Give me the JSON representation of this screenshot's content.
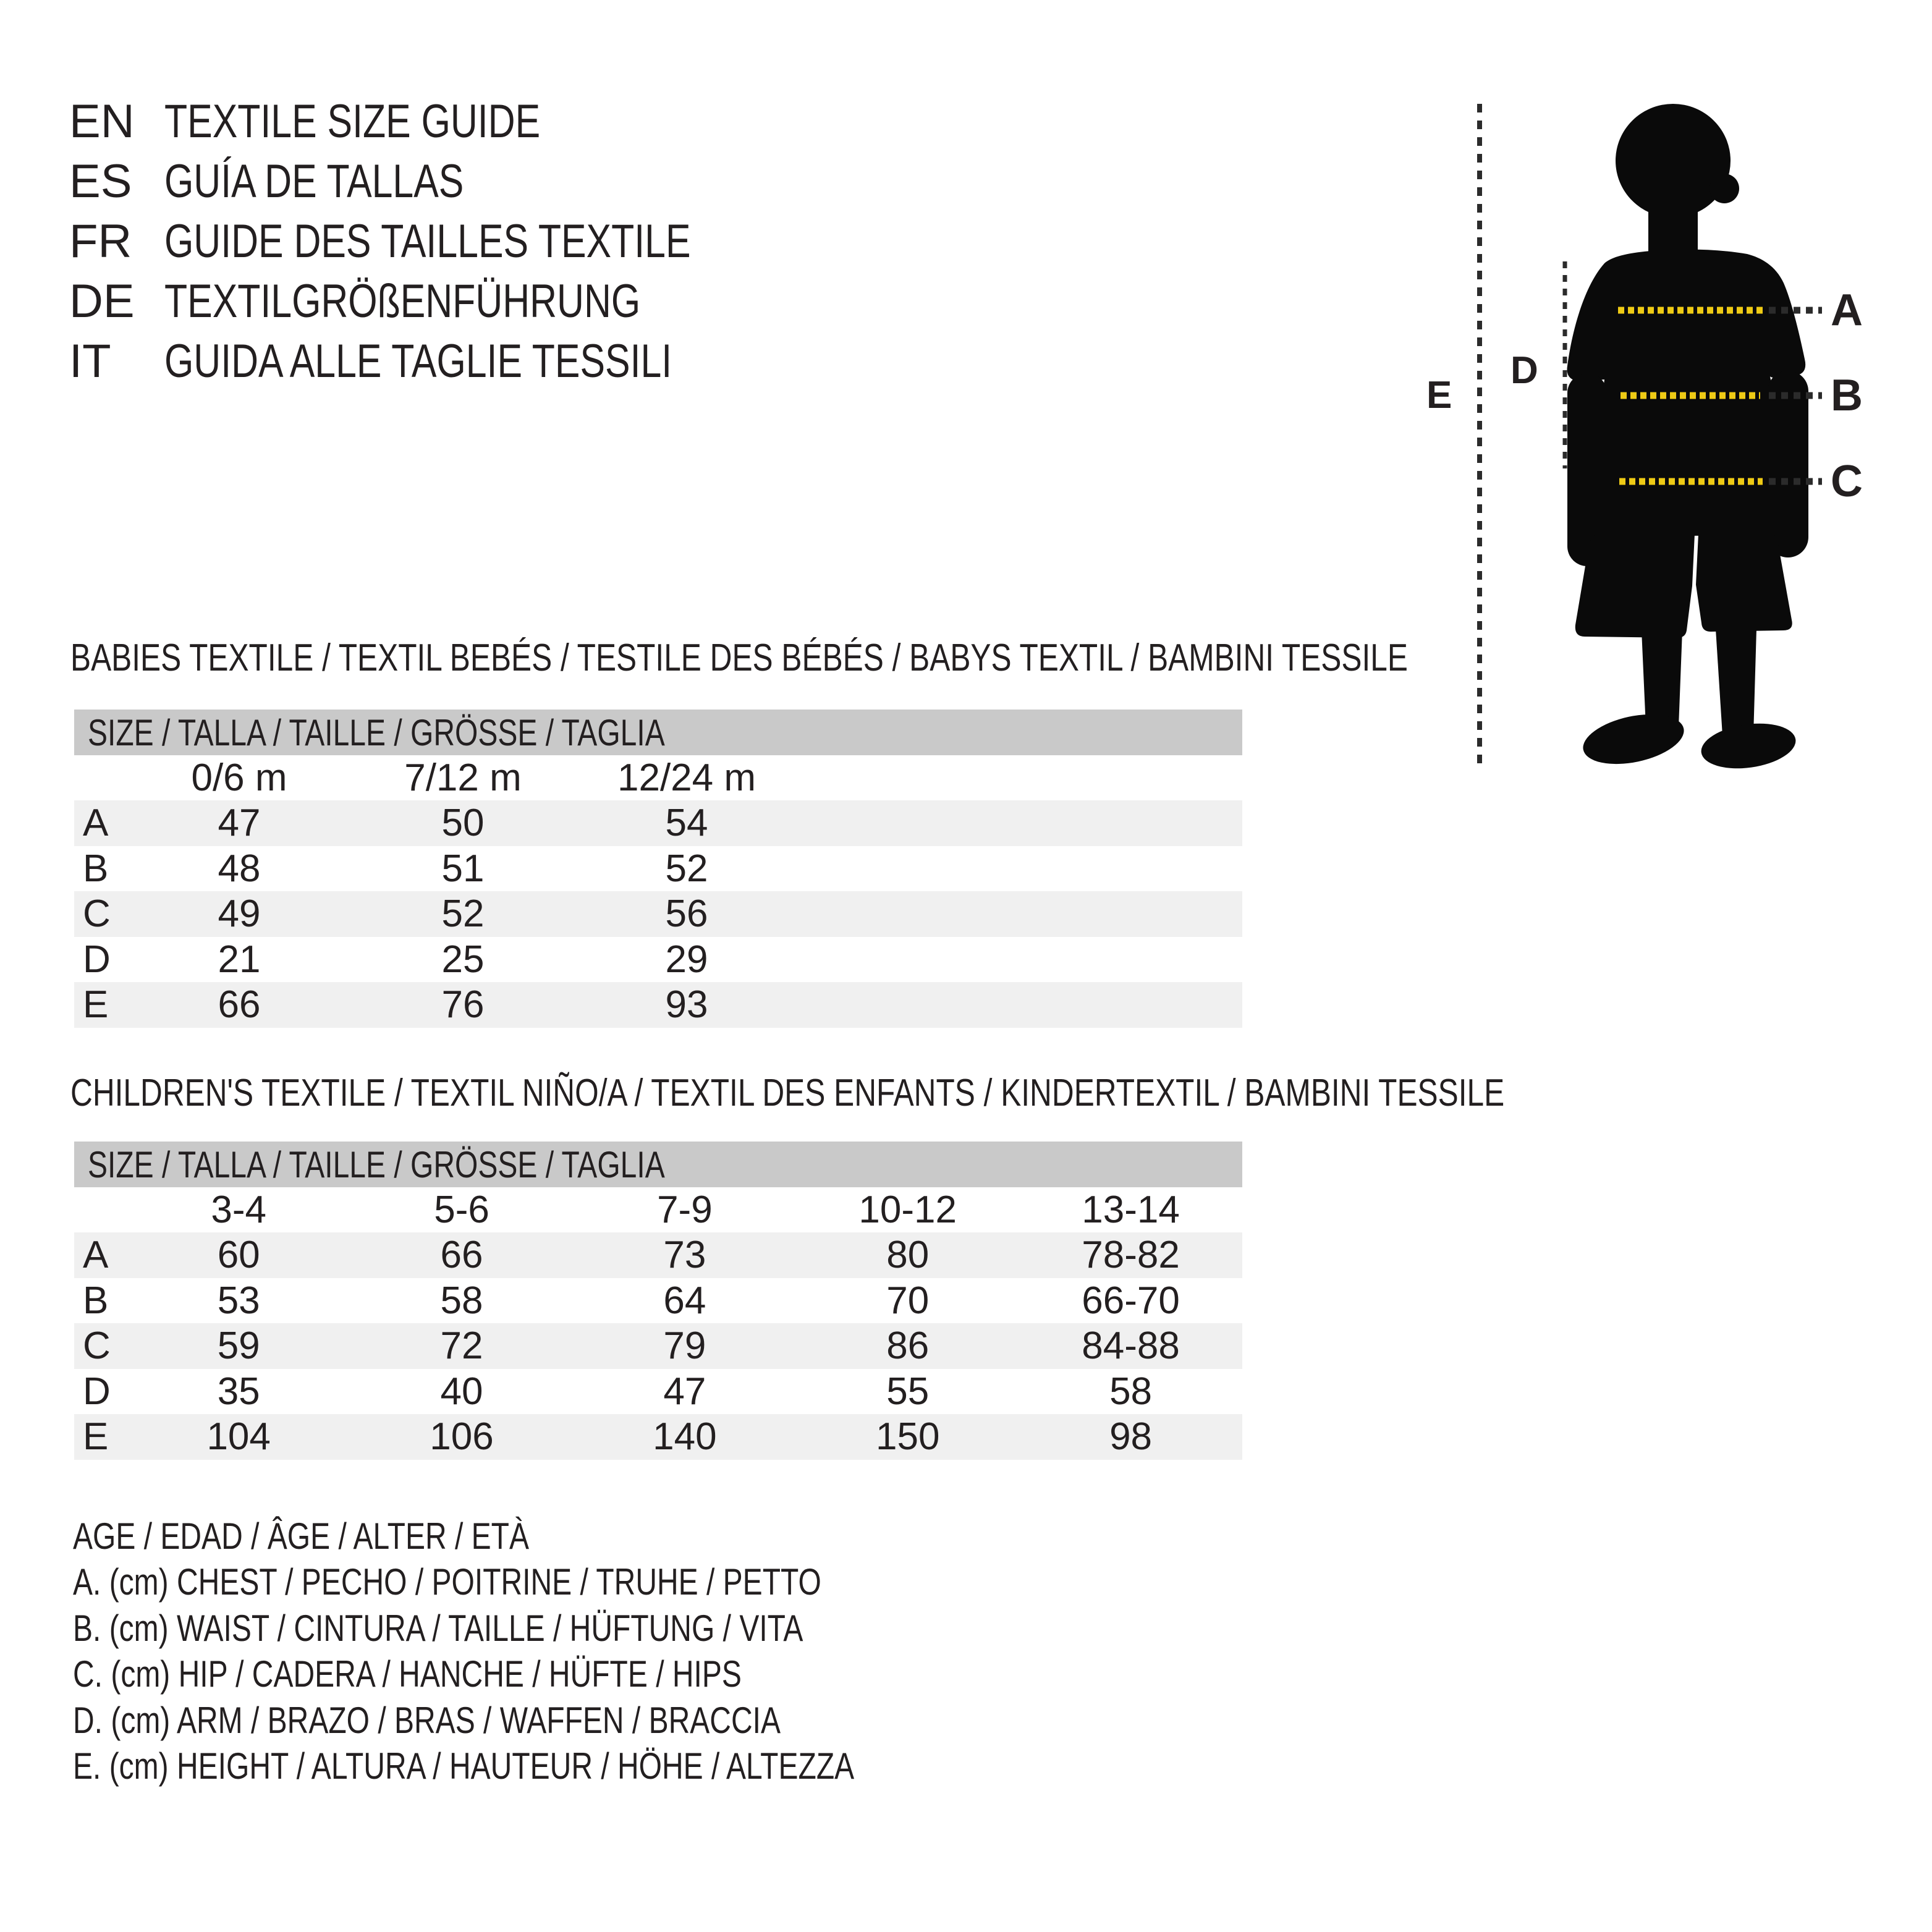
{
  "colors": {
    "ink": "#231F20",
    "bar_gray": "#C9C9C9",
    "stripe_gray": "#F0F0F0",
    "dash_dark": "#2B2B2B",
    "dash_yellow": "#EFCB15",
    "silhouette": "#0A0A0A"
  },
  "languages": [
    {
      "code": "EN",
      "label": "TEXTILE SIZE GUIDE"
    },
    {
      "code": "ES",
      "label": "GUÍA DE TALLAS"
    },
    {
      "code": "FR",
      "label": "GUIDE DES TAILLES TEXTILE"
    },
    {
      "code": "DE",
      "label": "TEXTILGRÖßENFÜHRUNG"
    },
    {
      "code": "IT",
      "label": "GUIDA ALLE TAGLIE TESSILI"
    }
  ],
  "figure": {
    "labels": {
      "a": "A",
      "b": "B",
      "c": "C",
      "d": "D",
      "e": "E"
    }
  },
  "babies": {
    "heading": "BABIES TEXTILE / TEXTIL BEBÉS / TESTILE DES BÉBÉS / BABYS TEXTIL / BAMBINI TESSILE",
    "size_header": "SIZE / TALLA / TAILLE / GRÖSSE / TAGLIA",
    "columns": [
      "0/6 m",
      "7/12 m",
      "12/24 m"
    ],
    "rows": [
      {
        "label": "A",
        "values": [
          "47",
          "50",
          "54"
        ]
      },
      {
        "label": "B",
        "values": [
          "48",
          "51",
          "52"
        ]
      },
      {
        "label": "C",
        "values": [
          "49",
          "52",
          "56"
        ]
      },
      {
        "label": "D",
        "values": [
          "21",
          "25",
          "29"
        ]
      },
      {
        "label": "E",
        "values": [
          "66",
          "76",
          "93"
        ]
      }
    ]
  },
  "children": {
    "heading": "CHILDREN'S TEXTILE / TEXTIL NIÑO/A / TEXTIL DES ENFANTS / KINDERTEXTIL / BAMBINI TESSILE",
    "size_header": "SIZE / TALLA / TAILLE / GRÖSSE / TAGLIA",
    "columns": [
      "3-4",
      "5-6",
      "7-9",
      "10-12",
      "13-14"
    ],
    "rows": [
      {
        "label": "A",
        "values": [
          "60",
          "66",
          "73",
          "80",
          "78-82"
        ]
      },
      {
        "label": "B",
        "values": [
          "53",
          "58",
          "64",
          "70",
          "66-70"
        ]
      },
      {
        "label": "C",
        "values": [
          "59",
          "72",
          "79",
          "86",
          "84-88"
        ]
      },
      {
        "label": "D",
        "values": [
          "35",
          "40",
          "47",
          "55",
          "58"
        ]
      },
      {
        "label": "E",
        "values": [
          "104",
          "106",
          "140",
          "150",
          "98"
        ]
      }
    ]
  },
  "legend": {
    "items": [
      "AGE / EDAD / ÂGE / ALTER / ETÀ",
      "A. (cm) CHEST / PECHO / POITRINE / TRUHE / PETTO",
      "B. (cm) WAIST / CINTURA / TAILLE / HÜFTUNG / VITA",
      "C. (cm) HIP / CADERA / HANCHE / HÜFTE / HIPS",
      "D. (cm) ARM / BRAZO / BRAS / WAFFEN / BRACCIA",
      "E. (cm) HEIGHT / ALTURA / HAUTEUR / HÖHE / ALTEZZA"
    ]
  }
}
